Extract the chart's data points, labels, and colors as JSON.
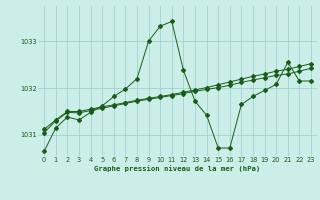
{
  "title": "Graphe pression niveau de la mer (hPa)",
  "background_color": "#cceee8",
  "grid_color": "#99cccc",
  "line_color": "#1a5c1a",
  "x_min": -0.5,
  "x_max": 23.5,
  "y_min": 1030.55,
  "y_max": 1033.75,
  "yticks": [
    1031,
    1032,
    1033
  ],
  "xticks": [
    0,
    1,
    2,
    3,
    4,
    5,
    6,
    7,
    8,
    9,
    10,
    11,
    12,
    13,
    14,
    15,
    16,
    17,
    18,
    19,
    20,
    21,
    22,
    23
  ],
  "series1_x": [
    0,
    1,
    2,
    3,
    4,
    5,
    6,
    7,
    8,
    9,
    10,
    11,
    12,
    13,
    14,
    15,
    16,
    17,
    18,
    19,
    20,
    21,
    22,
    23
  ],
  "series1_y": [
    1030.65,
    1031.15,
    1031.38,
    1031.32,
    1031.48,
    1031.62,
    1031.82,
    1031.98,
    1032.2,
    1033.0,
    1033.32,
    1033.42,
    1032.38,
    1031.72,
    1031.42,
    1030.72,
    1030.72,
    1031.65,
    1031.82,
    1031.95,
    1032.08,
    1032.55,
    1032.15,
    1032.15
  ],
  "series2_x": [
    0,
    1,
    2,
    3,
    4,
    5,
    6,
    7,
    8,
    9,
    10,
    11,
    12,
    13,
    14,
    15,
    16,
    17,
    18,
    19,
    20,
    21,
    22,
    23
  ],
  "series2_y": [
    1031.05,
    1031.3,
    1031.48,
    1031.47,
    1031.52,
    1031.57,
    1031.62,
    1031.67,
    1031.72,
    1031.76,
    1031.8,
    1031.84,
    1031.88,
    1031.93,
    1031.97,
    1032.01,
    1032.06,
    1032.12,
    1032.17,
    1032.22,
    1032.27,
    1032.3,
    1032.36,
    1032.42
  ],
  "series3_x": [
    0,
    1,
    2,
    3,
    4,
    5,
    6,
    7,
    8,
    9,
    10,
    11,
    12,
    13,
    14,
    15,
    16,
    17,
    18,
    19,
    20,
    21,
    22,
    23
  ],
  "series3_y": [
    1031.12,
    1031.32,
    1031.5,
    1031.5,
    1031.55,
    1031.6,
    1031.64,
    1031.69,
    1031.74,
    1031.78,
    1031.82,
    1031.86,
    1031.91,
    1031.96,
    1032.01,
    1032.07,
    1032.13,
    1032.19,
    1032.25,
    1032.3,
    1032.36,
    1032.4,
    1032.46,
    1032.52
  ]
}
